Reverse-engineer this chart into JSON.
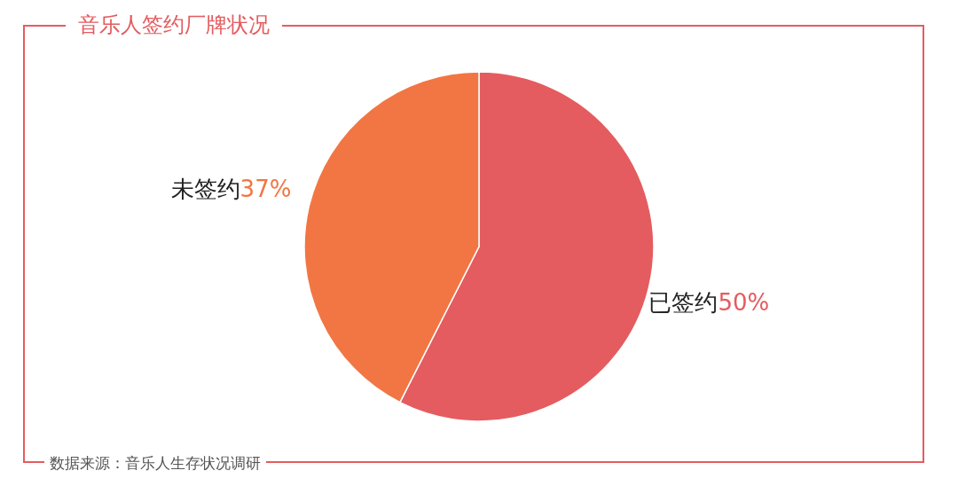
{
  "chart_data": {
    "type": "pie",
    "title": "音乐人签约厂牌状况",
    "categories": [
      "已签约",
      "未签约"
    ],
    "values": [
      50,
      37
    ],
    "value_labels": [
      "50%",
      "37%"
    ],
    "colors": [
      "#e45c5f",
      "#f27643"
    ],
    "annotations": [
      "数据来源：音乐人生存状况调研"
    ]
  }
}
